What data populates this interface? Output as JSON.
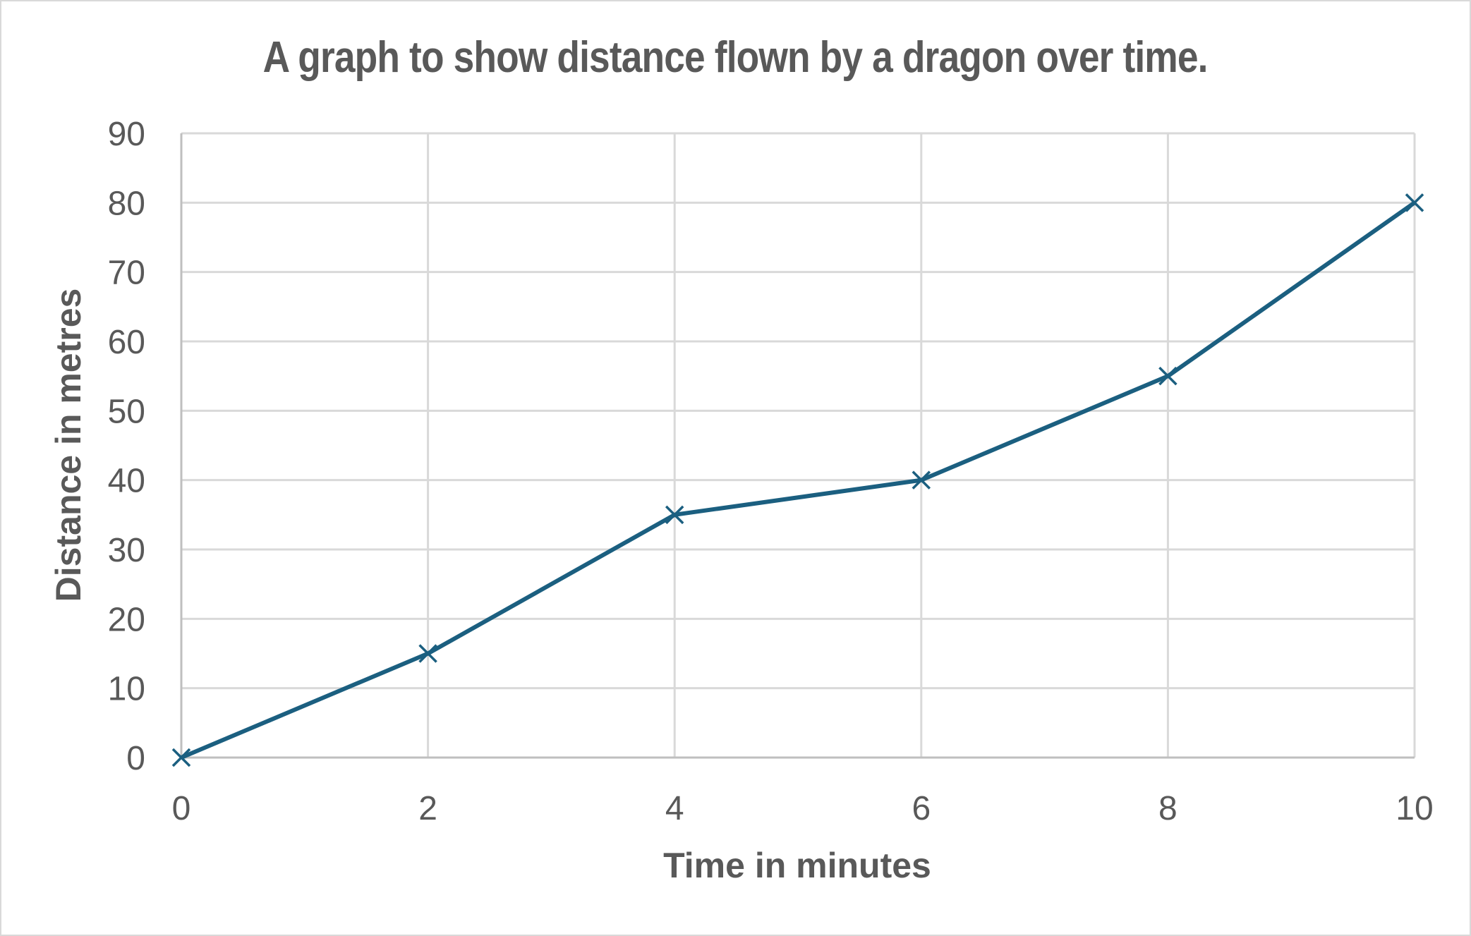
{
  "chart_data": {
    "type": "line",
    "title": "A graph to show distance flown by a dragon over time.",
    "xlabel": "Time in minutes",
    "ylabel": "Distance in metres",
    "x": [
      0,
      2,
      4,
      6,
      8,
      10
    ],
    "series": [
      {
        "name": "Distance",
        "values": [
          0,
          15,
          35,
          40,
          55,
          80
        ],
        "color": "#1b5f80",
        "marker": "x"
      }
    ],
    "xlim": [
      0,
      10
    ],
    "ylim": [
      0,
      90
    ],
    "x_ticks": [
      "0",
      "2",
      "4",
      "6",
      "8",
      "10"
    ],
    "y_ticks": [
      "0",
      "10",
      "20",
      "30",
      "40",
      "50",
      "60",
      "70",
      "80",
      "90"
    ],
    "grid": true,
    "legend": null
  },
  "colors": {
    "text": "#595959",
    "grid": "#d9d9d9",
    "line": "#1b5f80",
    "border": "#d9d9d9"
  }
}
